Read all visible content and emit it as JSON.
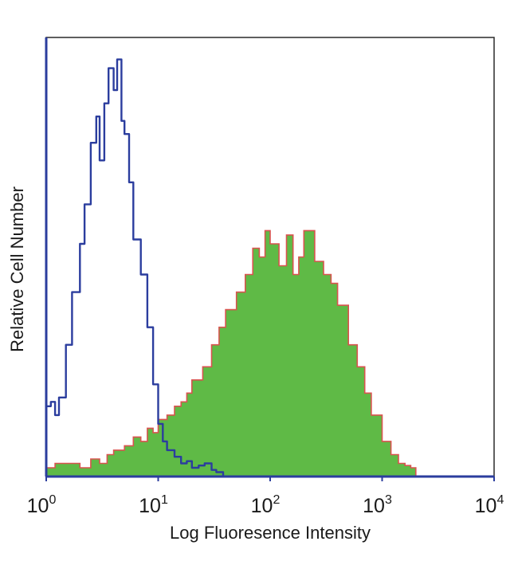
{
  "chart_data": {
    "type": "area",
    "title": "",
    "xlabel": "Log Fluoresence Intensity",
    "ylabel": "Relative Cell Number",
    "x_scale": "log",
    "xlim": [
      1,
      10000
    ],
    "ylim": [
      0,
      1
    ],
    "grid": false,
    "legend": "none",
    "x_ticks": [
      {
        "value": 1,
        "base": "10",
        "exp": "0"
      },
      {
        "value": 10,
        "base": "10",
        "exp": "1"
      },
      {
        "value": 100,
        "base": "10",
        "exp": "2"
      },
      {
        "value": 1000,
        "base": "10",
        "exp": "3"
      },
      {
        "value": 10000,
        "base": "10",
        "exp": "4"
      }
    ],
    "series": [
      {
        "style": "outline",
        "color": "#2b3d9e",
        "x": [
          1.0,
          1.1,
          1.2,
          1.3,
          1.5,
          1.7,
          2.0,
          2.2,
          2.5,
          2.8,
          3.0,
          3.3,
          3.6,
          4.0,
          4.3,
          4.7,
          5.0,
          5.5,
          6.0,
          7.0,
          8.0,
          9.0,
          10.0,
          11.0,
          12.0,
          14.0,
          16.0,
          18.0,
          20.0,
          23.0,
          26.0,
          30.0,
          33.0,
          38.0
        ],
        "values": [
          0.16,
          0.17,
          0.14,
          0.18,
          0.3,
          0.42,
          0.53,
          0.62,
          0.76,
          0.82,
          0.72,
          0.85,
          0.93,
          0.88,
          0.95,
          0.81,
          0.78,
          0.67,
          0.54,
          0.46,
          0.34,
          0.21,
          0.12,
          0.08,
          0.06,
          0.045,
          0.03,
          0.035,
          0.02,
          0.025,
          0.03,
          0.015,
          0.01,
          0.0
        ]
      },
      {
        "style": "filled",
        "color": "#5fba46",
        "edge_color": "#d9534f",
        "x": [
          1.0,
          1.2,
          1.5,
          2.0,
          2.5,
          3.0,
          3.5,
          4.0,
          5.0,
          6.0,
          7.0,
          8.0,
          9.0,
          10.0,
          12.0,
          14.0,
          16.0,
          18.0,
          20.0,
          25.0,
          30.0,
          35.0,
          40.0,
          50.0,
          60.0,
          70.0,
          80.0,
          90.0,
          100.0,
          120.0,
          140.0,
          160.0,
          180.0,
          200.0,
          250.0,
          300.0,
          350.0,
          400.0,
          500.0,
          600.0,
          700.0,
          800.0,
          1000.0,
          1200.0,
          1400.0,
          1600.0,
          1800.0,
          2000.0
        ],
        "values": [
          0.02,
          0.03,
          0.03,
          0.02,
          0.04,
          0.03,
          0.05,
          0.06,
          0.07,
          0.09,
          0.08,
          0.11,
          0.1,
          0.13,
          0.14,
          0.16,
          0.17,
          0.19,
          0.22,
          0.25,
          0.3,
          0.34,
          0.38,
          0.42,
          0.46,
          0.52,
          0.5,
          0.56,
          0.53,
          0.48,
          0.55,
          0.46,
          0.5,
          0.56,
          0.49,
          0.46,
          0.44,
          0.39,
          0.3,
          0.25,
          0.19,
          0.14,
          0.08,
          0.05,
          0.03,
          0.025,
          0.02,
          0.0
        ]
      }
    ]
  }
}
